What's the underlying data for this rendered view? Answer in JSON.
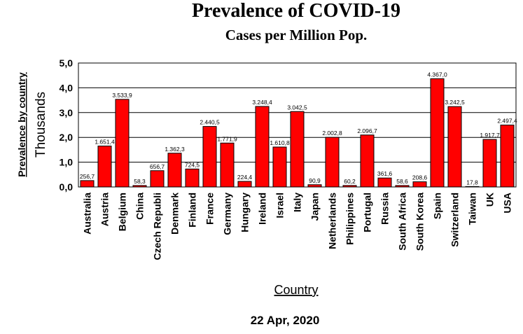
{
  "chart_data": {
    "type": "bar",
    "title": "Prevalence of COVID-19",
    "subtitle": "Cases per Million Pop.",
    "xlabel": "Country",
    "ylabel": "Prevalence by country",
    "yunit_label": "Thousands",
    "footer": "22 Apr, 2020",
    "categories": [
      "Australia",
      "Austria",
      "Belgium",
      "China",
      "Czech Republi",
      "Denmark",
      "Finland",
      "France",
      "Germany",
      "Hungary",
      "Ireland",
      "Israel",
      "Italy",
      "Japan",
      "Netherlands",
      "Philippines",
      "Portugal",
      "Russia",
      "South Africa",
      "South Korea",
      "Spain",
      "Switzerland",
      "Taiwan",
      "UK",
      "USA"
    ],
    "values": [
      256.7,
      1651.4,
      3533.9,
      58.3,
      656.7,
      1362.3,
      724.5,
      2440.5,
      1771.9,
      224.4,
      3248.4,
      1610.8,
      3042.5,
      90.9,
      2002.8,
      60.2,
      2096.7,
      361.6,
      58.6,
      208.6,
      4367.0,
      3242.5,
      17.8,
      1917.7,
      2497.4
    ],
    "value_labels": [
      "256,7",
      "1.651,4",
      "3.533,9",
      "58,3",
      "656,7",
      "1.362,3",
      "724,5",
      "2.440,5",
      "1.771,9",
      "224,4",
      "3.248,4",
      "1.610,8",
      "3.042,5",
      "90,9",
      "2.002,8",
      "60,2",
      "2.096,7",
      "361,6",
      "58,6",
      "208,6",
      "4.367,0",
      "3.242,5",
      "17,8",
      "1.917,7",
      "2.497,4"
    ],
    "yticks": [
      0,
      1000,
      2000,
      3000,
      4000,
      5000
    ],
    "ytick_labels": [
      "0,0",
      "1,0",
      "2,0",
      "3,0",
      "4,0",
      "5,0"
    ],
    "ylim": [
      0,
      5000
    ],
    "grid": true,
    "bar_color": "#ff0000",
    "bar_edge_color": "#000000"
  }
}
